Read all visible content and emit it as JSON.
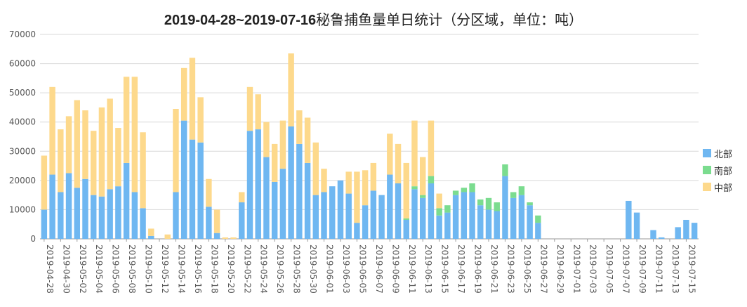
{
  "title": {
    "bold": "2019-04-28~2019-07-16",
    "rest": "秘鲁捕鱼量单日统计（分区域，单位：吨）"
  },
  "legend": [
    {
      "name": "北部",
      "color": "#6fb7f1"
    },
    {
      "name": "南部",
      "color": "#7bdc8f"
    },
    {
      "name": "中部",
      "color": "#fdd98c"
    }
  ],
  "chart_data": {
    "type": "bar",
    "stacked": true,
    "title": "2019-04-28~2019-07-16秘鲁捕鱼量单日统计（分区域，单位：吨）",
    "ylim": [
      0,
      70000
    ],
    "yticks": [
      0,
      10000,
      20000,
      30000,
      40000,
      50000,
      60000,
      70000
    ],
    "grid": true,
    "legend_position": "right",
    "categories": [
      "2019-04-28",
      "2019-04-29",
      "2019-04-30",
      "2019-05-01",
      "2019-05-02",
      "2019-05-03",
      "2019-05-04",
      "2019-05-05",
      "2019-05-06",
      "2019-05-07",
      "2019-05-08",
      "2019-05-09",
      "2019-05-10",
      "2019-05-11",
      "2019-05-12",
      "2019-05-13",
      "2019-05-14",
      "2019-05-15",
      "2019-05-16",
      "2019-05-17",
      "2019-05-18",
      "2019-05-19",
      "2019-05-20",
      "2019-05-21",
      "2019-05-22",
      "2019-05-23",
      "2019-05-24",
      "2019-05-25",
      "2019-05-26",
      "2019-05-27",
      "2019-05-28",
      "2019-05-29",
      "2019-05-30",
      "2019-05-31",
      "2019-06-01",
      "2019-06-02",
      "2019-06-03",
      "2019-06-04",
      "2019-06-05",
      "2019-06-06",
      "2019-06-07",
      "2019-06-08",
      "2019-06-09",
      "2019-06-10",
      "2019-06-11",
      "2019-06-12",
      "2019-06-13",
      "2019-06-14",
      "2019-06-15",
      "2019-06-16",
      "2019-06-17",
      "2019-06-18",
      "2019-06-19",
      "2019-06-20",
      "2019-06-21",
      "2019-06-22",
      "2019-06-23",
      "2019-06-24",
      "2019-06-25",
      "2019-06-26",
      "2019-06-27",
      "2019-06-28",
      "2019-06-29",
      "2019-06-30",
      "2019-07-01",
      "2019-07-02",
      "2019-07-03",
      "2019-07-04",
      "2019-07-05",
      "2019-07-06",
      "2019-07-07",
      "2019-07-08",
      "2019-07-09",
      "2019-07-10",
      "2019-07-11",
      "2019-07-12",
      "2019-07-13",
      "2019-07-14",
      "2019-07-15",
      "2019-07-16"
    ],
    "xtick_labels": [
      "2019-04-28",
      "2019-04-30",
      "2019-05-02",
      "2019-05-04",
      "2019-05-06",
      "2019-05-08",
      "2019-05-10",
      "2019-05-12",
      "2019-05-14",
      "2019-05-16",
      "2019-05-18",
      "2019-05-20",
      "2019-05-22",
      "2019-05-24",
      "2019-05-26",
      "2019-05-28",
      "2019-05-30",
      "2019-06-01",
      "2019-06-03",
      "2019-06-05",
      "2019-06-07",
      "2019-06-09",
      "2019-06-11",
      "2019-06-13",
      "2019-06-15",
      "2019-06-17",
      "2019-06-19",
      "2019-06-21",
      "2019-06-23",
      "2019-06-25",
      "2019-06-27",
      "2019-06-29",
      "2019-07-01",
      "2019-07-03",
      "2019-07-05",
      "2019-07-07",
      "2019-07-09",
      "2019-07-11",
      "2019-07-13",
      "2019-07-15"
    ],
    "series": [
      {
        "name": "北部",
        "color": "#6fb7f1",
        "values": [
          10000,
          22000,
          16000,
          22500,
          17500,
          20500,
          15000,
          14500,
          17000,
          18000,
          26000,
          16000,
          10500,
          1000,
          0,
          0,
          16000,
          40500,
          34000,
          33000,
          11000,
          2000,
          0,
          0,
          12500,
          37000,
          37500,
          28000,
          19500,
          24000,
          38500,
          32500,
          26000,
          15000,
          16000,
          18000,
          20000,
          15500,
          5500,
          11500,
          16500,
          15000,
          22000,
          19000,
          6500,
          17000,
          14000,
          19000,
          8000,
          9000,
          15000,
          16000,
          16000,
          11500,
          10000,
          9500,
          21500,
          14000,
          15000,
          11500,
          5500,
          0,
          0,
          0,
          0,
          0,
          0,
          0,
          0,
          0,
          0,
          13000,
          9000,
          0,
          3000,
          500,
          0,
          4000,
          6500,
          5500
        ]
      },
      {
        "name": "南部",
        "color": "#7bdc8f",
        "values": [
          0,
          0,
          0,
          0,
          0,
          0,
          0,
          0,
          0,
          0,
          0,
          0,
          0,
          0,
          0,
          0,
          0,
          0,
          0,
          0,
          0,
          0,
          0,
          0,
          0,
          0,
          0,
          0,
          0,
          0,
          0,
          0,
          0,
          0,
          0,
          0,
          0,
          0,
          0,
          0,
          0,
          0,
          0,
          0,
          500,
          1000,
          1000,
          2500,
          2500,
          2500,
          1500,
          1500,
          3000,
          2000,
          4000,
          3000,
          4000,
          2000,
          3000,
          1000,
          2500,
          0,
          0,
          0,
          0,
          0,
          0,
          0,
          0,
          0,
          0,
          0,
          0,
          0,
          0,
          0,
          0,
          0,
          0,
          0
        ]
      },
      {
        "name": "中部",
        "color": "#fdd98c",
        "values": [
          18500,
          30000,
          21500,
          19500,
          30000,
          23500,
          22000,
          30500,
          31000,
          20000,
          29500,
          39500,
          26000,
          2500,
          0,
          1500,
          28500,
          18000,
          28000,
          15500,
          9500,
          8000,
          500,
          500,
          3500,
          15000,
          12000,
          12000,
          13000,
          16500,
          25000,
          11500,
          15500,
          18000,
          8000,
          0,
          0,
          7500,
          17500,
          12000,
          9500,
          0,
          14000,
          13500,
          19000,
          22500,
          13000,
          19000,
          5000,
          0,
          0,
          0,
          0,
          0,
          0,
          0,
          0,
          0,
          0,
          0,
          0,
          0,
          0,
          0,
          0,
          0,
          0,
          0,
          0,
          0,
          0,
          0,
          0,
          0,
          0,
          0,
          0,
          0,
          0,
          0
        ]
      }
    ]
  }
}
